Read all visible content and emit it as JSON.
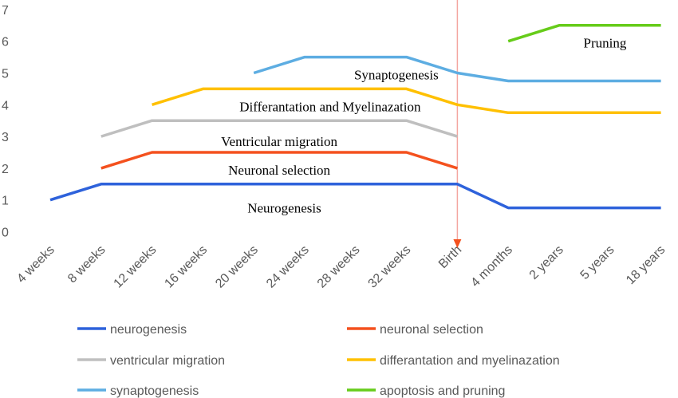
{
  "chart_data": {
    "type": "line",
    "title": "",
    "xlabel": "",
    "ylabel": "",
    "categories": [
      "4 weeks",
      "8 weeks",
      "12 weeks",
      "16 weeks",
      "20 weeks",
      "24 weeks",
      "28 weeks",
      "32 weeks",
      "Birth",
      "4 months",
      "2 years",
      "5 years",
      "18 years"
    ],
    "ylim": [
      0,
      7
    ],
    "yticks": [
      "0",
      "1",
      "2",
      "3",
      "4",
      "5",
      "6",
      "7"
    ],
    "grid": false,
    "legend_position": "bottom",
    "series": [
      {
        "name": "neurogenesis",
        "color": "#2E62DB",
        "values": [
          1,
          1.5,
          1.5,
          1.5,
          1.5,
          1.5,
          1.5,
          1.5,
          1.5,
          0.75,
          0.75,
          0.75,
          0.75
        ]
      },
      {
        "name": "neuronal selection",
        "color": "#F4511E",
        "values": [
          null,
          2,
          2.5,
          2.5,
          2.5,
          2.5,
          2.5,
          2.5,
          2,
          null,
          null,
          null,
          null
        ]
      },
      {
        "name": "ventricular migration",
        "color": "#BFBFBF",
        "values": [
          null,
          3,
          3.5,
          3.5,
          3.5,
          3.5,
          3.5,
          3.5,
          3,
          null,
          null,
          null,
          null
        ]
      },
      {
        "name": "differantation and myelinazation",
        "color": "#FFC000",
        "values": [
          null,
          null,
          4,
          4.5,
          4.5,
          4.5,
          4.5,
          4.5,
          4,
          3.75,
          3.75,
          3.75,
          3.75
        ]
      },
      {
        "name": "synaptogenesis",
        "color": "#5DADE2",
        "values": [
          null,
          null,
          null,
          null,
          5,
          5.5,
          5.5,
          5.5,
          5,
          4.75,
          4.75,
          4.75,
          4.75
        ]
      },
      {
        "name": "apoptosis and pruning",
        "color": "#66CC1A",
        "values": [
          null,
          null,
          null,
          null,
          null,
          null,
          null,
          null,
          null,
          6,
          6.5,
          6.5,
          6.5
        ]
      }
    ],
    "annotations": [
      {
        "text": "Neurogenesis",
        "x": 4.6,
        "y": 0.75
      },
      {
        "text": "Neuronal selection",
        "x": 4.5,
        "y": 1.95
      },
      {
        "text": "Ventricular migration",
        "x": 4.5,
        "y": 2.85
      },
      {
        "text": "Differantation and Myelinazation",
        "x": 5.5,
        "y": 3.95
      },
      {
        "text": "Synaptogenesis",
        "x": 6.8,
        "y": 4.95
      },
      {
        "text": "Pruning",
        "x": 10.9,
        "y": 5.95
      }
    ],
    "birth_marker": {
      "category": "Birth",
      "color": "#F4A6A0"
    }
  }
}
